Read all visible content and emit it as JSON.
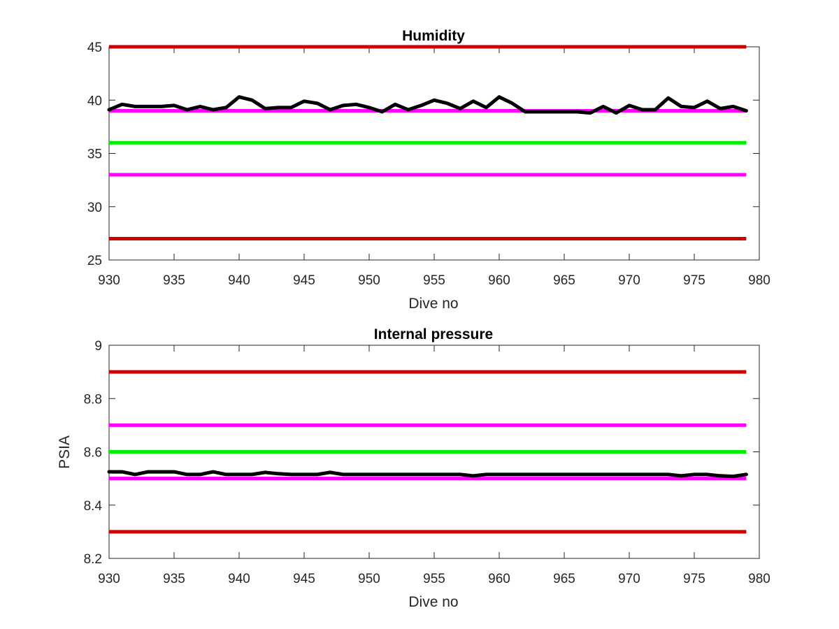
{
  "figure": {
    "background": "#ffffff"
  },
  "colors": {
    "red": "#cc0000",
    "magenta": "#ff00ff",
    "green": "#00ee00",
    "black": "#000000",
    "axis": "#262626"
  },
  "chart_data": [
    {
      "type": "line",
      "title": "Humidity",
      "xlabel": "Dive no",
      "ylabel": "",
      "xlim": [
        930,
        980
      ],
      "ylim": [
        25,
        45
      ],
      "xticks": [
        930,
        935,
        940,
        945,
        950,
        955,
        960,
        965,
        970,
        975,
        980
      ],
      "yticks": [
        25,
        30,
        35,
        40,
        45
      ],
      "grid": false,
      "legend": "none",
      "reference_lines": [
        {
          "y": 45,
          "color": "#cc0000"
        },
        {
          "y": 39,
          "color": "#ff00ff"
        },
        {
          "y": 36,
          "color": "#00ee00"
        },
        {
          "y": 33,
          "color": "#ff00ff"
        },
        {
          "y": 27,
          "color": "#cc0000"
        }
      ],
      "series": [
        {
          "color": "#000000",
          "x": [
            930,
            931,
            932,
            933,
            934,
            935,
            936,
            937,
            938,
            939,
            940,
            941,
            942,
            943,
            944,
            945,
            946,
            947,
            948,
            949,
            950,
            951,
            952,
            953,
            954,
            955,
            956,
            957,
            958,
            959,
            960,
            961,
            962,
            963,
            964,
            965,
            966,
            967,
            968,
            969,
            970,
            971,
            972,
            973,
            974,
            975,
            976,
            977,
            978,
            979
          ],
          "values": [
            39.1,
            39.6,
            39.4,
            39.4,
            39.4,
            39.5,
            39.1,
            39.4,
            39.1,
            39.3,
            40.3,
            40.0,
            39.2,
            39.3,
            39.3,
            39.9,
            39.7,
            39.1,
            39.5,
            39.6,
            39.3,
            38.9,
            39.6,
            39.1,
            39.5,
            40.0,
            39.7,
            39.2,
            39.9,
            39.3,
            40.3,
            39.7,
            38.9,
            38.9,
            38.9,
            38.9,
            38.9,
            38.8,
            39.4,
            38.8,
            39.5,
            39.1,
            39.1,
            40.2,
            39.4,
            39.3,
            39.9,
            39.2,
            39.4,
            39.0
          ]
        }
      ]
    },
    {
      "type": "line",
      "title": "Internal pressure",
      "xlabel": "Dive no",
      "ylabel": "PSIA",
      "xlim": [
        930,
        980
      ],
      "ylim": [
        8.2,
        9
      ],
      "xticks": [
        930,
        935,
        940,
        945,
        950,
        955,
        960,
        965,
        970,
        975,
        980
      ],
      "yticks": [
        8.2,
        8.4,
        8.6,
        8.8,
        9
      ],
      "grid": false,
      "legend": "none",
      "reference_lines": [
        {
          "y": 8.9,
          "color": "#cc0000"
        },
        {
          "y": 8.7,
          "color": "#ff00ff"
        },
        {
          "y": 8.6,
          "color": "#00ee00"
        },
        {
          "y": 8.5,
          "color": "#ff00ff"
        },
        {
          "y": 8.3,
          "color": "#cc0000"
        }
      ],
      "series": [
        {
          "color": "#000000",
          "x": [
            930,
            931,
            932,
            933,
            934,
            935,
            936,
            937,
            938,
            939,
            940,
            941,
            942,
            943,
            944,
            945,
            946,
            947,
            948,
            949,
            950,
            951,
            952,
            953,
            954,
            955,
            956,
            957,
            958,
            959,
            960,
            961,
            962,
            963,
            964,
            965,
            966,
            967,
            968,
            969,
            970,
            971,
            972,
            973,
            974,
            975,
            976,
            977,
            978,
            979
          ],
          "values": [
            8.525,
            8.525,
            8.515,
            8.525,
            8.525,
            8.525,
            8.515,
            8.515,
            8.525,
            8.515,
            8.515,
            8.515,
            8.523,
            8.518,
            8.515,
            8.515,
            8.515,
            8.523,
            8.515,
            8.515,
            8.515,
            8.515,
            8.515,
            8.515,
            8.515,
            8.515,
            8.515,
            8.515,
            8.51,
            8.515,
            8.515,
            8.515,
            8.515,
            8.515,
            8.515,
            8.515,
            8.515,
            8.515,
            8.515,
            8.515,
            8.515,
            8.515,
            8.515,
            8.515,
            8.51,
            8.515,
            8.515,
            8.51,
            8.508,
            8.515
          ]
        }
      ]
    }
  ]
}
